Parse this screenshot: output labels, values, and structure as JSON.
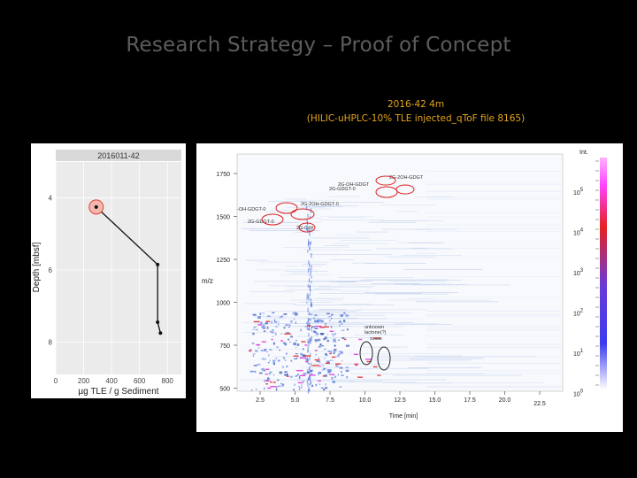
{
  "slide": {
    "title": "Research Strategy – Proof of Concept",
    "subtitle_line1": "2016-42 4m",
    "subtitle_line2": "(HILIC-uHPLC-10% TLE injected_qToF file 8165)"
  },
  "depth_profile": {
    "facet_label": "2016011-42",
    "ylabel": "Depth [mbsf]",
    "xlabel": "µg TLE / g Sediment",
    "x_ticks": [
      "0",
      "200",
      "400",
      "600",
      "800"
    ],
    "y_ticks": [
      "4",
      "6",
      "8"
    ],
    "xlim": [
      0,
      900
    ],
    "ylim": [
      3.0,
      8.9
    ],
    "points": [
      {
        "x": 290,
        "y": 4.25,
        "highlight": true
      },
      {
        "x": 730,
        "y": 5.85
      },
      {
        "x": 730,
        "y": 7.45
      },
      {
        "x": 750,
        "y": 7.75
      }
    ]
  },
  "ms_plot": {
    "ylabel": "m/z",
    "xlabel": "Time [min]",
    "x_ticks": [
      "2.5",
      "5.0",
      "7.5",
      "10.0",
      "12.5",
      "15.0",
      "17.5",
      "20.0",
      "22.5"
    ],
    "y_ticks": [
      "1750",
      "1500",
      "1250",
      "1000",
      "750",
      "500"
    ],
    "intensity_label": "Int.",
    "intensity_base": "10",
    "intensity_exponents": [
      "5",
      "4",
      "3",
      "2",
      "1",
      "0"
    ],
    "annotations": [
      "2G-OH-GDGT",
      "2G-2OH-GDGT",
      "2G-GDGT-0",
      "2G-2OH-GDGT-0",
      "-OH-GDGT-0",
      "2G-GDGT-0",
      "2G-C##",
      "unknown",
      "lactone(?)",
      "xxxxx"
    ],
    "colors": {
      "low": "#3a6fd8",
      "mid": "#e23a3a",
      "high": "#ff55ff",
      "highlight": "#f4b7b0"
    }
  }
}
